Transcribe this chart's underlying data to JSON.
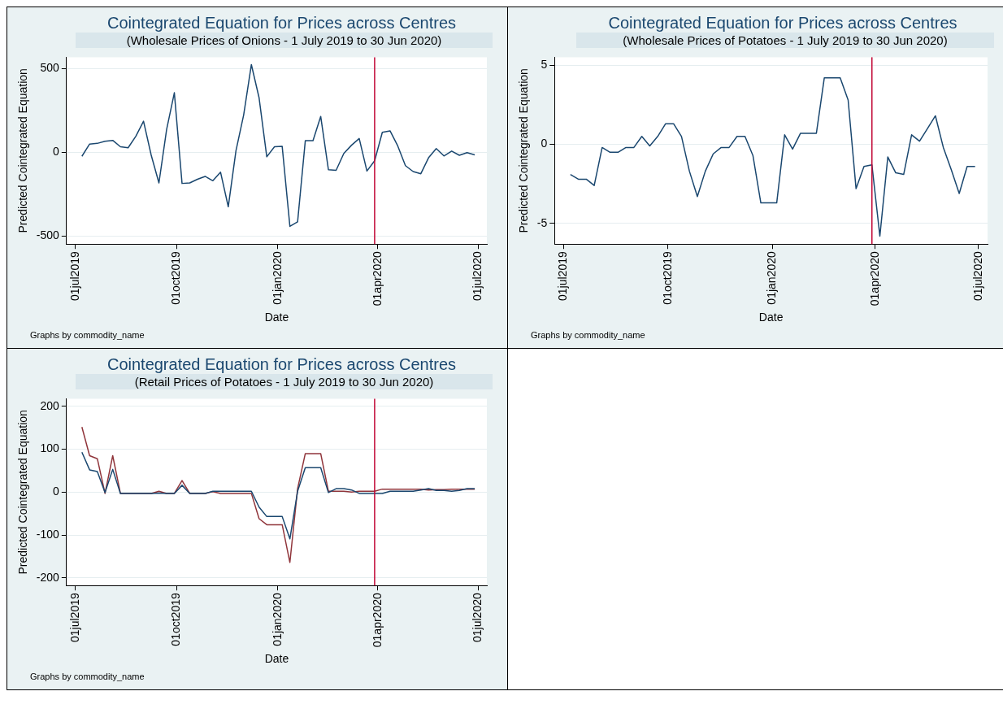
{
  "chart_data": [
    {
      "type": "line",
      "title": "Cointegrated Equation for Prices across Centres",
      "subtitle": "(Wholesale Prices of Onions - 1 July 2019 to 30 Jun 2020)",
      "xlabel": "Date",
      "ylabel": "Predicted Cointegrated Equation",
      "x": [
        "2019-07-07",
        "2019-07-14",
        "2019-07-21",
        "2019-07-28",
        "2019-08-04",
        "2019-08-11",
        "2019-08-18",
        "2019-08-25",
        "2019-09-01",
        "2019-09-08",
        "2019-09-15",
        "2019-09-22",
        "2019-09-29",
        "2019-10-06",
        "2019-10-13",
        "2019-10-20",
        "2019-10-27",
        "2019-11-03",
        "2019-11-10",
        "2019-11-17",
        "2019-11-24",
        "2019-12-01",
        "2019-12-08",
        "2019-12-15",
        "2019-12-22",
        "2019-12-29",
        "2020-01-05",
        "2020-01-12",
        "2020-01-19",
        "2020-01-26",
        "2020-02-02",
        "2020-02-09",
        "2020-02-16",
        "2020-02-23",
        "2020-03-01",
        "2020-03-08",
        "2020-03-15",
        "2020-03-22",
        "2020-03-29",
        "2020-04-05",
        "2020-04-12",
        "2020-04-19",
        "2020-04-26",
        "2020-05-03",
        "2020-05-10",
        "2020-05-17",
        "2020-05-24",
        "2020-05-31",
        "2020-06-07",
        "2020-06-14",
        "2020-06-21",
        "2020-06-28"
      ],
      "series": [
        {
          "color": "#1a476f",
          "values": [
            -24,
            49,
            53,
            66,
            71,
            33,
            27,
            95,
            185,
            -18,
            -183,
            137,
            355,
            -186,
            -183,
            -161,
            -144,
            -170,
            -119,
            -325,
            9,
            223,
            523,
            325,
            -27,
            33,
            35,
            -442,
            -415,
            69,
            69,
            214,
            -104,
            -108,
            -7,
            42,
            82,
            -112,
            -51,
            119,
            128,
            38,
            -80,
            -115,
            -128,
            -33,
            22,
            -22,
            7,
            -18,
            -2,
            -16
          ]
        }
      ],
      "xlim": [
        "2019-06-23",
        "2020-07-09"
      ],
      "xticks": [
        {
          "value": "2019-07-01",
          "label": "01jul2019"
        },
        {
          "value": "2019-10-01",
          "label": "01oct2019"
        },
        {
          "value": "2020-01-01",
          "label": "01jan2020"
        },
        {
          "value": "2020-04-01",
          "label": "01apr2020"
        },
        {
          "value": "2020-07-01",
          "label": "01jul2020"
        }
      ],
      "ylim": [
        -548,
        567
      ],
      "yticks": [
        -500,
        0,
        500
      ],
      "grid": "y",
      "legend": false,
      "ref_lines": [
        {
          "axis": "x",
          "value": "2020-03-29",
          "color": "#c10534"
        }
      ],
      "annotations": [
        "Graphs by commodity_name"
      ]
    },
    {
      "type": "line",
      "title": "Cointegrated Equation for Prices across Centres",
      "subtitle": "(Wholesale Prices of Potatoes - 1 July 2019 to 30 Jun 2020)",
      "xlabel": "Date",
      "ylabel": "Predicted Cointegrated Equation",
      "x": [
        "2019-07-07",
        "2019-07-14",
        "2019-07-21",
        "2019-07-28",
        "2019-08-04",
        "2019-08-11",
        "2019-08-18",
        "2019-08-25",
        "2019-09-01",
        "2019-09-08",
        "2019-09-15",
        "2019-09-22",
        "2019-09-29",
        "2019-10-06",
        "2019-10-13",
        "2019-10-20",
        "2019-10-27",
        "2019-11-03",
        "2019-11-10",
        "2019-11-17",
        "2019-11-24",
        "2019-12-01",
        "2019-12-08",
        "2019-12-15",
        "2019-12-22",
        "2019-12-29",
        "2020-01-05",
        "2020-01-12",
        "2020-01-19",
        "2020-01-26",
        "2020-02-02",
        "2020-02-09",
        "2020-02-16",
        "2020-02-23",
        "2020-03-01",
        "2020-03-08",
        "2020-03-15",
        "2020-03-22",
        "2020-03-29",
        "2020-04-05",
        "2020-04-12",
        "2020-04-19",
        "2020-04-26",
        "2020-05-03",
        "2020-05-10",
        "2020-05-17",
        "2020-05-24",
        "2020-05-31",
        "2020-06-07",
        "2020-06-14",
        "2020-06-21",
        "2020-06-28"
      ],
      "series": [
        {
          "color": "#1a476f",
          "values": [
            -1.9,
            -2.2,
            -2.2,
            -2.6,
            -0.2,
            -0.5,
            -0.5,
            -0.2,
            -0.2,
            0.5,
            -0.1,
            0.5,
            1.3,
            1.3,
            0.5,
            -1.7,
            -3.3,
            -1.7,
            -0.6,
            -0.2,
            -0.2,
            0.5,
            0.5,
            -0.7,
            -3.7,
            -3.7,
            -3.7,
            0.6,
            -0.3,
            0.7,
            0.7,
            0.7,
            4.2,
            4.2,
            4.2,
            2.8,
            -2.8,
            -1.4,
            -1.3,
            -5.8,
            -0.8,
            -1.8,
            -1.9,
            0.6,
            0.2,
            1.0,
            1.8,
            -0.2,
            -1.6,
            -3.1,
            -1.4,
            -1.4
          ]
        }
      ],
      "xlim": [
        "2019-06-23",
        "2020-07-09"
      ],
      "xticks": [
        {
          "value": "2019-07-01",
          "label": "01jul2019"
        },
        {
          "value": "2019-10-01",
          "label": "01oct2019"
        },
        {
          "value": "2020-01-01",
          "label": "01jan2020"
        },
        {
          "value": "2020-04-01",
          "label": "01apr2020"
        },
        {
          "value": "2020-07-01",
          "label": "01jul2020"
        }
      ],
      "ylim": [
        -6.3,
        5.5
      ],
      "yticks": [
        -5,
        0,
        5
      ],
      "grid": "y",
      "legend": false,
      "ref_lines": [
        {
          "axis": "x",
          "value": "2020-03-29",
          "color": "#c10534"
        }
      ],
      "annotations": [
        "Graphs by commodity_name"
      ]
    },
    {
      "type": "line",
      "title": "Cointegrated Equation for Prices across Centres",
      "subtitle": "(Retail Prices of Potatoes - 1 July 2019 to 30 Jun 2020)",
      "xlabel": "Date",
      "ylabel": "Predicted Cointegrated Equation",
      "x": [
        "2019-07-07",
        "2019-07-14",
        "2019-07-21",
        "2019-07-28",
        "2019-08-04",
        "2019-08-11",
        "2019-08-18",
        "2019-08-25",
        "2019-09-01",
        "2019-09-08",
        "2019-09-15",
        "2019-09-22",
        "2019-09-29",
        "2019-10-06",
        "2019-10-13",
        "2019-10-20",
        "2019-10-27",
        "2019-11-03",
        "2019-11-10",
        "2019-11-17",
        "2019-11-24",
        "2019-12-01",
        "2019-12-08",
        "2019-12-15",
        "2019-12-22",
        "2019-12-29",
        "2020-01-05",
        "2020-01-12",
        "2020-01-19",
        "2020-01-26",
        "2020-02-02",
        "2020-02-09",
        "2020-02-16",
        "2020-02-23",
        "2020-03-01",
        "2020-03-08",
        "2020-03-15",
        "2020-03-22",
        "2020-03-29",
        "2020-04-05",
        "2020-04-12",
        "2020-04-19",
        "2020-04-26",
        "2020-05-03",
        "2020-05-10",
        "2020-05-17",
        "2020-05-24",
        "2020-05-31",
        "2020-06-07",
        "2020-06-14",
        "2020-06-21",
        "2020-06-28"
      ],
      "series": [
        {
          "color": "#1a476f",
          "values": [
            93,
            52,
            48,
            -1,
            53,
            -3,
            -3,
            -3,
            -3,
            -3,
            -2,
            -3,
            -3,
            16,
            -3,
            -3,
            -3,
            2,
            2,
            2,
            2,
            2,
            2,
            -35,
            -57,
            -57,
            -57,
            -109,
            2,
            57,
            57,
            57,
            -1,
            8,
            8,
            5,
            -3,
            -3,
            -3,
            -3,
            2,
            2,
            2,
            2,
            5,
            8,
            4,
            4,
            2,
            4,
            8,
            8
          ]
        },
        {
          "color": "#90353b",
          "values": [
            152,
            85,
            78,
            -3,
            85,
            -3,
            -3,
            -3,
            -3,
            -3,
            2,
            -3,
            -3,
            27,
            -3,
            -3,
            -3,
            1,
            -3,
            -3,
            -3,
            -3,
            -3,
            -62,
            -76,
            -76,
            -76,
            -164,
            8,
            90,
            90,
            90,
            2,
            2,
            2,
            0,
            2,
            2,
            2,
            7,
            7,
            7,
            7,
            7,
            7,
            5,
            6,
            6,
            7,
            7,
            7,
            7
          ]
        }
      ],
      "xlim": [
        "2019-06-23",
        "2020-07-09"
      ],
      "xticks": [
        {
          "value": "2019-07-01",
          "label": "01jul2019"
        },
        {
          "value": "2019-10-01",
          "label": "01oct2019"
        },
        {
          "value": "2020-01-01",
          "label": "01jan2020"
        },
        {
          "value": "2020-04-01",
          "label": "01apr2020"
        },
        {
          "value": "2020-07-01",
          "label": "01jul2020"
        }
      ],
      "ylim": [
        -218,
        218
      ],
      "yticks": [
        -200,
        -100,
        0,
        100,
        200
      ],
      "grid": "y",
      "legend": false,
      "ref_lines": [
        {
          "axis": "x",
          "value": "2020-03-29",
          "color": "#c10534"
        }
      ],
      "annotations": [
        "Graphs by commodity_name"
      ]
    }
  ]
}
